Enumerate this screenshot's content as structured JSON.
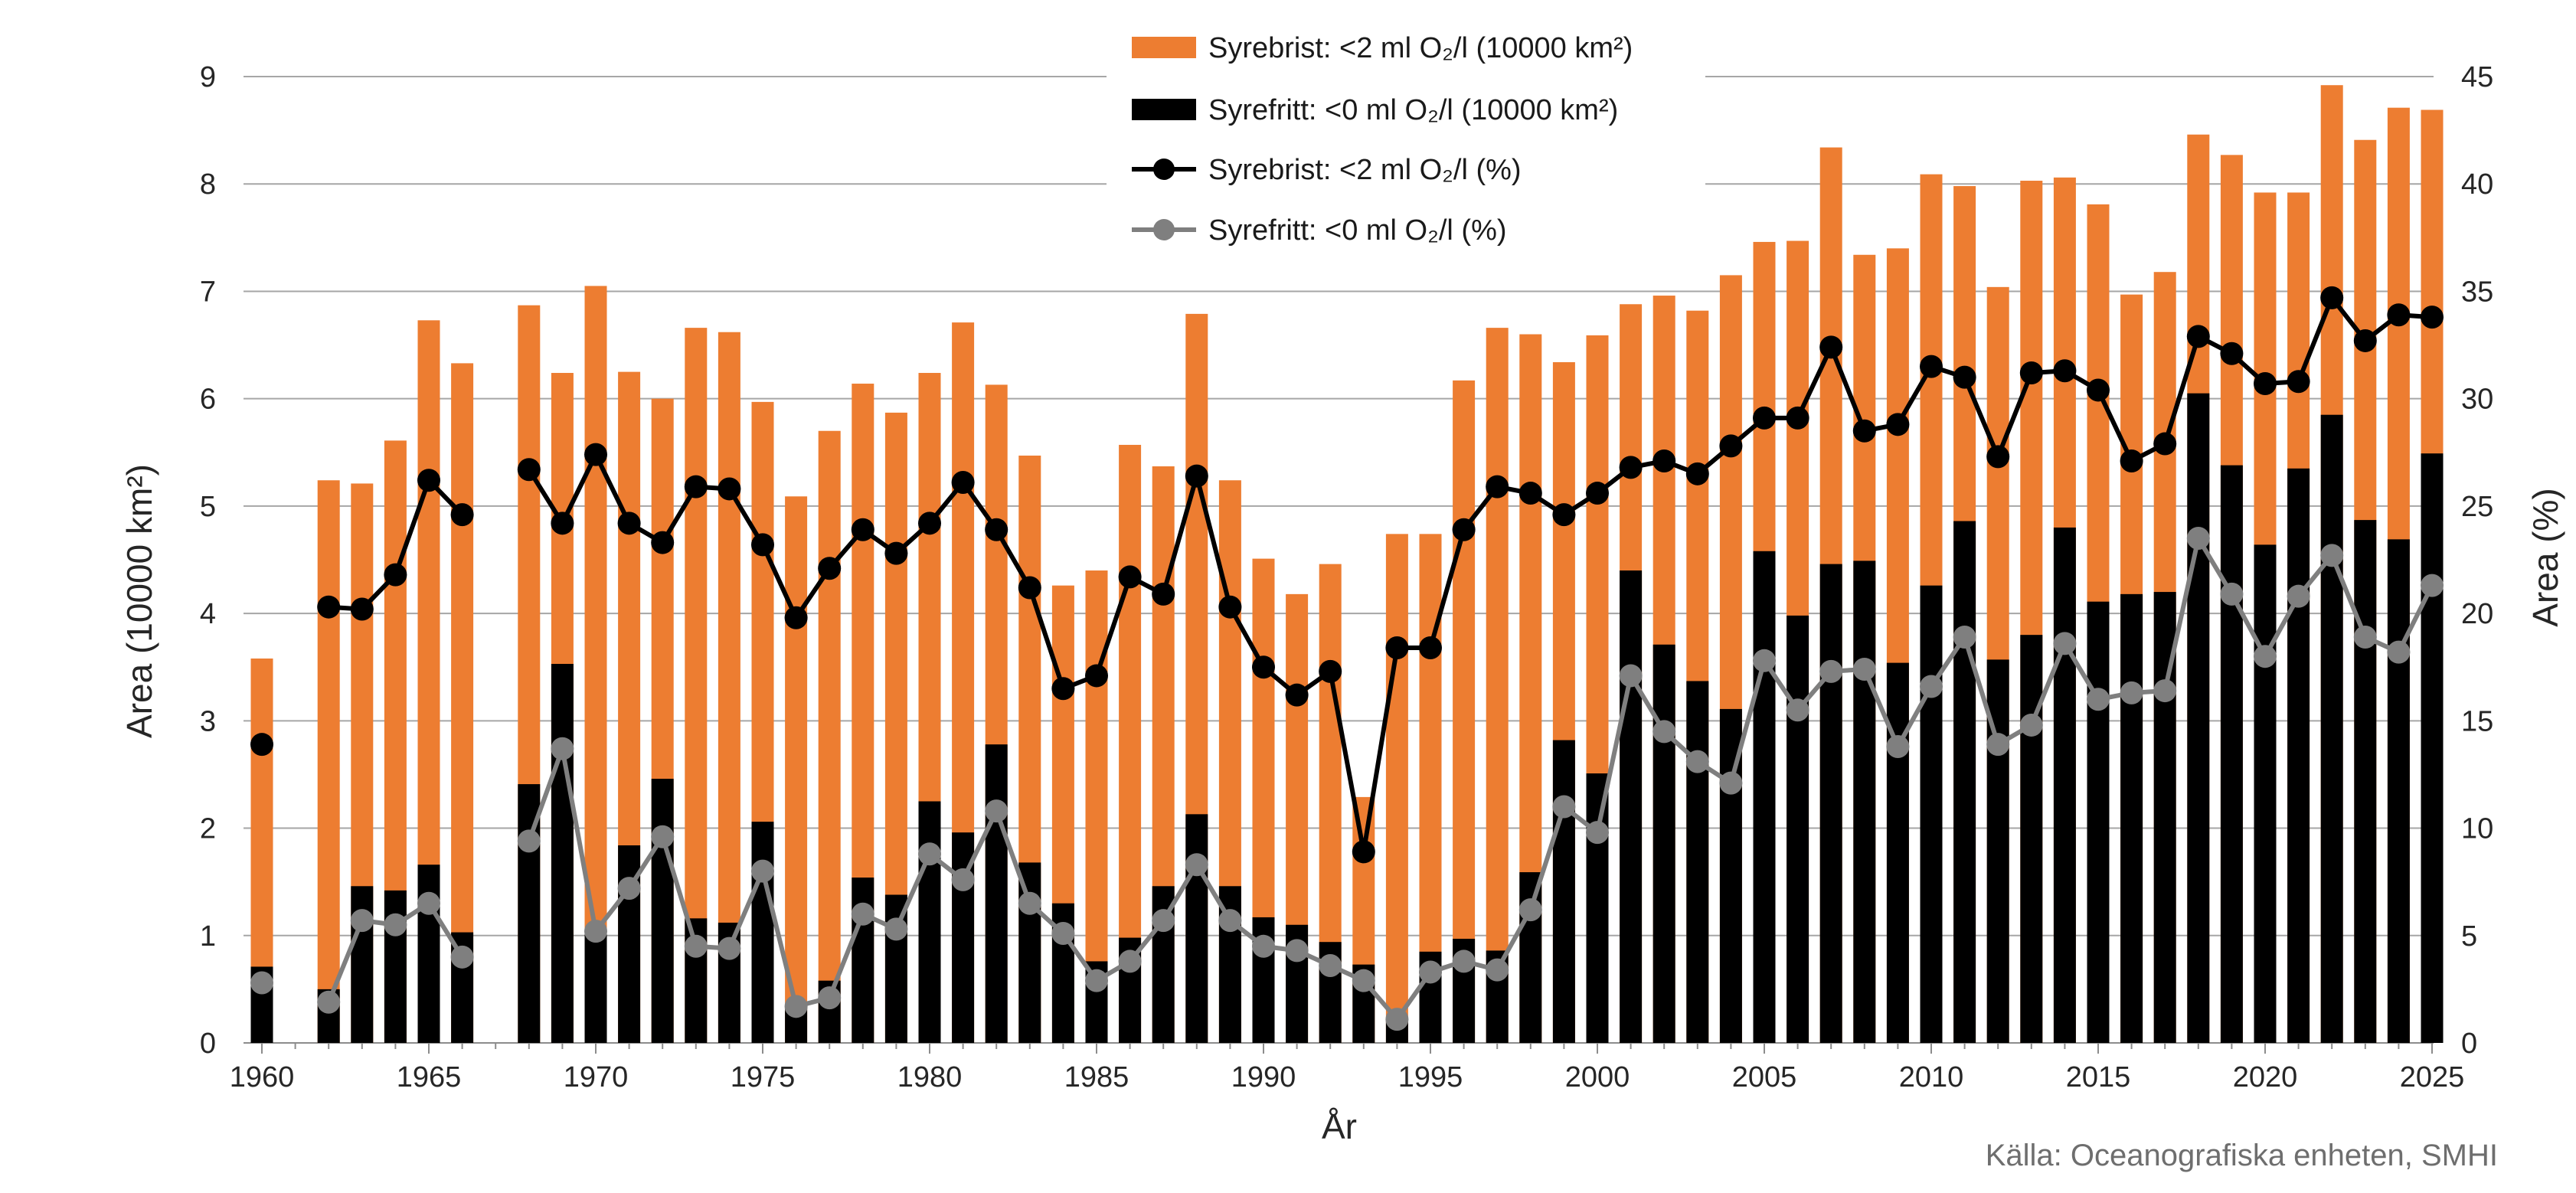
{
  "chart_data": {
    "type": "bar+line",
    "xlabel": "År",
    "ylabel_left": "Area (10000 km²)",
    "ylabel_right": "Area (%)",
    "ylim_left": [
      0,
      9
    ],
    "ylim_right": [
      0,
      45
    ],
    "yticks_left": [
      "0",
      "1",
      "2",
      "3",
      "4",
      "5",
      "6",
      "7",
      "8",
      "9"
    ],
    "yticks_right": [
      "0",
      "5",
      "10",
      "15",
      "20",
      "25",
      "30",
      "35",
      "40",
      "45"
    ],
    "xticks": [
      "1960",
      "1965",
      "1970",
      "1975",
      "1980",
      "1985",
      "1990",
      "1995",
      "2000",
      "2005",
      "2010",
      "2015",
      "2020",
      "2025"
    ],
    "source": "Källa: Oceanografiska enheten, SMHI",
    "colors": {
      "orange": "#ED7D31",
      "black": "#000000",
      "gray": "#7F7F7F",
      "grid": "#A6A6A6"
    },
    "legend": [
      {
        "label": "Syrebrist: <2 ml O₂/l (10000 km²)",
        "kind": "bar",
        "color": "#ED7D31"
      },
      {
        "label": "Syrefritt: <0 ml O₂/l (10000 km²)",
        "kind": "bar",
        "color": "#000000"
      },
      {
        "label": "Syrebrist: <2 ml O₂/l (%)",
        "kind": "line",
        "color": "#000000"
      },
      {
        "label": "Syrefritt: <0 ml O₂/l (%)",
        "kind": "line",
        "color": "#7F7F7F"
      }
    ],
    "years": [
      1960,
      1961,
      1962,
      1963,
      1964,
      1965,
      1966,
      1967,
      1968,
      1969,
      1970,
      1971,
      1972,
      1973,
      1974,
      1975,
      1976,
      1977,
      1978,
      1979,
      1980,
      1981,
      1982,
      1983,
      1984,
      1985,
      1986,
      1987,
      1988,
      1989,
      1990,
      1991,
      1992,
      1993,
      1994,
      1995,
      1996,
      1997,
      1998,
      1999,
      2000,
      2001,
      2002,
      2003,
      2004,
      2005,
      2006,
      2007,
      2008,
      2009,
      2010,
      2011,
      2012,
      2013,
      2014,
      2015,
      2016,
      2017,
      2018,
      2019,
      2020,
      2021,
      2022,
      2023,
      2024,
      2025
    ],
    "series": [
      {
        "name": "Syrebrist: <2 ml O₂/l (10000 km²)",
        "axis": "left",
        "type": "bar",
        "values": [
          3.58,
          null,
          5.24,
          5.21,
          5.61,
          6.73,
          6.33,
          null,
          6.87,
          6.24,
          7.05,
          6.25,
          6.0,
          6.66,
          6.62,
          5.97,
          5.09,
          5.7,
          6.14,
          5.87,
          6.24,
          6.71,
          6.13,
          5.47,
          4.26,
          4.4,
          5.57,
          5.37,
          6.79,
          5.24,
          4.51,
          4.18,
          4.46,
          2.29,
          4.74,
          4.74,
          6.17,
          6.66,
          6.6,
          6.34,
          6.59,
          6.88,
          6.96,
          6.82,
          7.15,
          7.46,
          7.47,
          8.34,
          7.34,
          7.4,
          8.09,
          7.98,
          7.04,
          8.03,
          8.06,
          7.81,
          6.97,
          7.18,
          8.46,
          8.27,
          7.92,
          7.92,
          8.92,
          8.41,
          8.71,
          8.69
        ]
      },
      {
        "name": "Syrefritt: <0 ml O₂/l (10000 km²)",
        "axis": "left",
        "type": "bar",
        "values": [
          0.71,
          null,
          0.5,
          1.46,
          1.42,
          1.66,
          1.03,
          null,
          2.41,
          3.53,
          1.03,
          1.84,
          2.46,
          1.16,
          1.12,
          2.06,
          0.35,
          0.58,
          1.54,
          1.38,
          2.25,
          1.96,
          2.78,
          1.68,
          1.3,
          0.76,
          0.98,
          1.46,
          2.13,
          1.46,
          1.17,
          1.1,
          0.94,
          0.73,
          0.22,
          0.85,
          0.97,
          0.86,
          1.59,
          2.82,
          2.51,
          4.4,
          3.71,
          3.37,
          3.11,
          4.58,
          3.98,
          4.46,
          4.49,
          3.54,
          4.26,
          4.86,
          3.57,
          3.8,
          4.8,
          4.11,
          4.18,
          4.2,
          6.05,
          5.38,
          4.64,
          5.35,
          5.85,
          4.87,
          4.69,
          5.49
        ]
      },
      {
        "name": "Syrebrist: <2 ml O₂/l (%)",
        "axis": "right",
        "type": "line",
        "values": [
          13.9,
          null,
          20.3,
          20.2,
          21.8,
          26.2,
          24.6,
          null,
          26.7,
          24.2,
          27.4,
          24.2,
          23.3,
          25.9,
          25.8,
          23.2,
          19.8,
          22.1,
          23.9,
          22.8,
          24.2,
          26.1,
          23.9,
          21.2,
          16.5,
          17.1,
          21.7,
          20.9,
          26.4,
          20.3,
          17.5,
          16.2,
          17.3,
          8.9,
          18.4,
          18.4,
          23.9,
          25.9,
          25.6,
          24.6,
          25.6,
          26.8,
          27.1,
          26.5,
          27.8,
          29.1,
          29.1,
          32.4,
          28.5,
          28.8,
          31.5,
          31.0,
          27.3,
          31.2,
          31.3,
          30.4,
          27.1,
          27.9,
          32.9,
          32.1,
          30.7,
          30.8,
          34.7,
          32.7,
          33.9,
          33.8
        ]
      },
      {
        "name": "Syrefritt: <0 ml O₂/l (%)",
        "axis": "right",
        "type": "line",
        "values": [
          2.8,
          null,
          1.9,
          5.7,
          5.5,
          6.5,
          4.0,
          null,
          9.4,
          13.7,
          5.2,
          7.2,
          9.6,
          4.5,
          4.4,
          8.0,
          1.7,
          2.1,
          6.0,
          5.3,
          8.8,
          7.6,
          10.8,
          6.5,
          5.1,
          2.9,
          3.8,
          5.7,
          8.3,
          5.7,
          4.5,
          4.3,
          3.6,
          2.9,
          1.1,
          3.3,
          3.8,
          3.4,
          6.2,
          11.0,
          9.8,
          17.1,
          14.5,
          13.1,
          12.1,
          17.8,
          15.5,
          17.3,
          17.4,
          13.8,
          16.6,
          18.9,
          13.9,
          14.8,
          18.6,
          16.0,
          16.3,
          16.4,
          23.5,
          20.9,
          18.0,
          20.8,
          22.7,
          18.9,
          18.2,
          21.3
        ]
      }
    ]
  }
}
